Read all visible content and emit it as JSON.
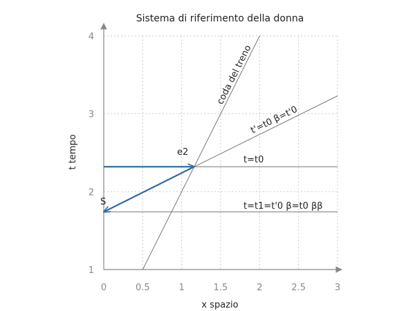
{
  "chart_data": {
    "type": "line",
    "title": "Sistema di riferimento della donna",
    "xlabel": "x spazio",
    "ylabel": "t tempo",
    "xlim": [
      0,
      3
    ],
    "ylim": [
      1,
      4
    ],
    "x_ticks": [
      "0",
      "0.5",
      "1",
      "1.5",
      "2",
      "2.5",
      "3"
    ],
    "y_ticks": [
      "1",
      "2",
      "3",
      "4"
    ],
    "grid": true,
    "lines": [
      {
        "label": "coda del treno",
        "x": [
          0.5,
          2.0
        ],
        "y": [
          1.0,
          4.0
        ]
      },
      {
        "label": "t'=t0 β=t'0",
        "x": [
          1.16,
          3.0
        ],
        "y": [
          2.32,
          3.23
        ]
      },
      {
        "label": "t=t0",
        "x": [
          0.0,
          3.0
        ],
        "y": [
          2.32,
          2.32
        ]
      },
      {
        "label": "t=t1=t'0 β=t0 ββ",
        "x": [
          0.0,
          3.0
        ],
        "y": [
          1.74,
          1.74
        ]
      }
    ],
    "arrows": [
      {
        "x_from": 0.0,
        "y_from": 2.32,
        "x_to": 1.16,
        "y_to": 2.32
      },
      {
        "x_from": 1.16,
        "y_from": 2.32,
        "x_to": 0.0,
        "y_to": 1.74
      }
    ],
    "points": [
      {
        "label": "e2",
        "x": 1.16,
        "y": 2.32
      },
      {
        "label": "S",
        "x": 0.0,
        "y": 1.74
      }
    ],
    "colors": {
      "line": "#777777",
      "arrow": "#2e6da4",
      "grid": "#cccccc",
      "axis": "#888888"
    }
  }
}
